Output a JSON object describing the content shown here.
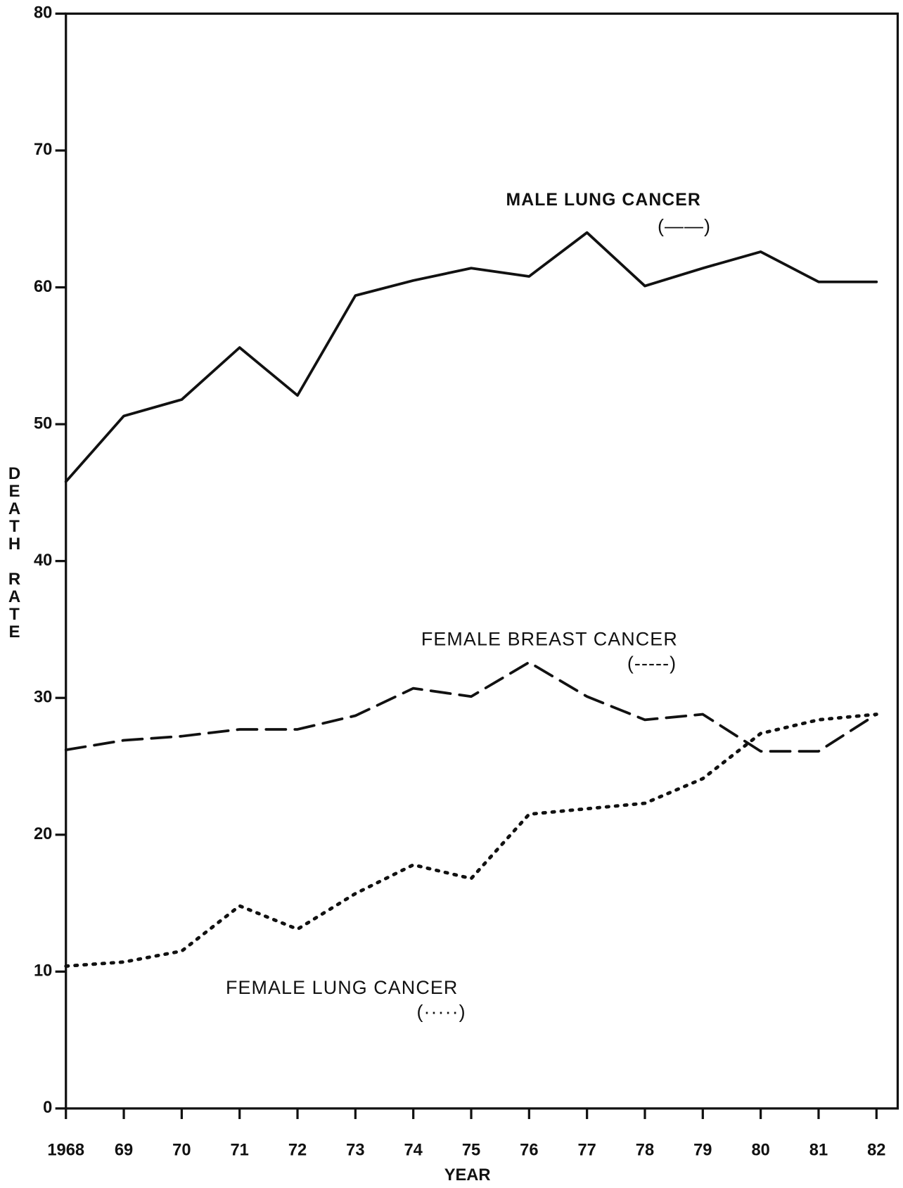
{
  "chart_data": {
    "type": "line",
    "x_label": "YEAR",
    "y_label": "DEATH RATE",
    "categories": [
      "1968",
      "69",
      "70",
      "71",
      "72",
      "73",
      "74",
      "75",
      "76",
      "77",
      "78",
      "79",
      "80",
      "81",
      "82"
    ],
    "ylim": [
      0,
      80
    ],
    "yticks": [
      0,
      10,
      20,
      30,
      40,
      50,
      60,
      70,
      80
    ],
    "series": [
      {
        "name": "MALE LUNG CANCER",
        "key": "(——)",
        "color": "#111",
        "dash": "solid",
        "values": [
          45.8,
          50.6,
          51.8,
          55.6,
          52.1,
          59.4,
          60.5,
          61.4,
          60.8,
          64.0,
          60.1,
          61.4,
          62.6,
          60.4,
          60.4
        ]
      },
      {
        "name": "FEMALE BREAST CANCER",
        "key": "(-----)",
        "color": "#111",
        "dash": "dashed",
        "values": [
          26.2,
          26.9,
          27.2,
          27.7,
          27.7,
          28.7,
          30.7,
          30.1,
          32.6,
          30.1,
          28.4,
          28.8,
          26.1,
          26.1,
          28.8
        ]
      },
      {
        "name": "FEMALE LUNG CANCER",
        "key": "(·····)",
        "color": "#111",
        "dash": "dotted",
        "values": [
          10.4,
          10.7,
          11.5,
          14.8,
          13.1,
          15.7,
          17.8,
          16.8,
          21.5,
          21.9,
          22.3,
          24.1,
          27.4,
          28.4,
          28.8
        ]
      }
    ]
  }
}
